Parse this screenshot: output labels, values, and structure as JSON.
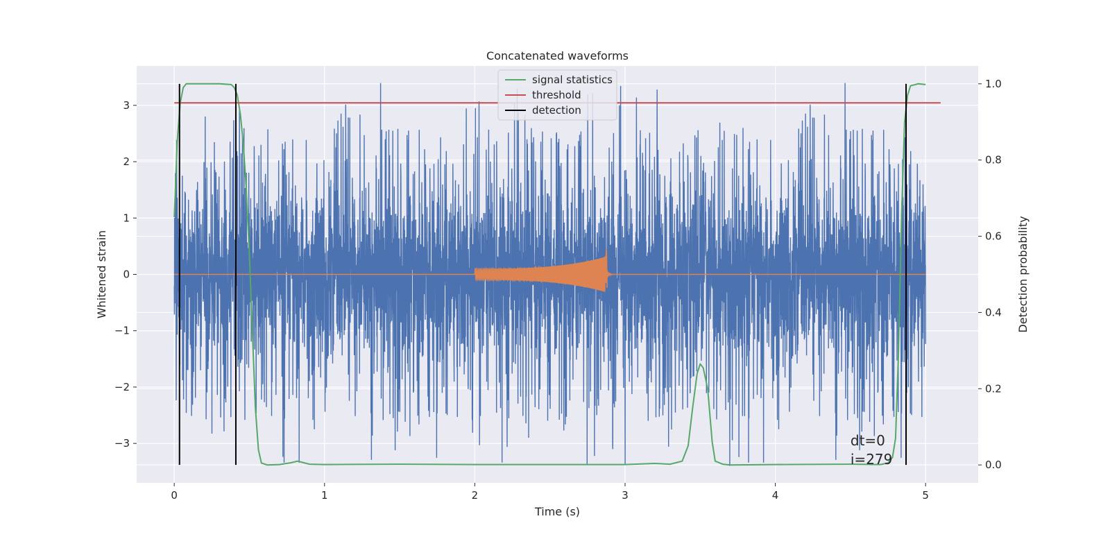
{
  "chart_data": {
    "type": "line",
    "title": "Concatenated waveforms",
    "xlabel": "Time (s)",
    "ylabel": "Whitened strain",
    "y2label": "Detection probability",
    "xlim": [
      -0.25,
      5.35
    ],
    "ylim": [
      -3.7,
      3.7
    ],
    "y2lim": [
      -0.047,
      1.047
    ],
    "xticks": [
      0,
      1,
      2,
      3,
      4,
      5
    ],
    "yticks": [
      3,
      2,
      1,
      0,
      -1,
      -2,
      -3
    ],
    "yticks_text": [
      "3",
      "2",
      "1",
      "0",
      "−1",
      "−2",
      "−3"
    ],
    "y2ticks": [
      1.0,
      0.8,
      0.6,
      0.4,
      0.2,
      0.0
    ],
    "y2ticks_text": [
      "1.0",
      "0.8",
      "0.6",
      "0.4",
      "0.2",
      "0.0"
    ],
    "grid": true,
    "legend_placement": "upper-center",
    "noise": {
      "color": "#4c72b0",
      "x_range": [
        0,
        5
      ],
      "core_amplitude": 1.0,
      "peak_range": [
        -3.4,
        3.4
      ],
      "samples": 5000
    },
    "injected_signal": {
      "color": "#dd8452",
      "start": 2.0,
      "merger": 2.88,
      "end": 5.0,
      "amplitude_start": 0.1,
      "amplitude_peak": 0.32,
      "amplitude_min_dip": -0.45
    },
    "series": [
      {
        "name": "signal statistics",
        "axis": "y2",
        "color": "#55a868",
        "x": [
          0.0,
          0.02,
          0.04,
          0.06,
          0.08,
          0.1,
          0.15,
          0.2,
          0.3,
          0.38,
          0.4,
          0.42,
          0.44,
          0.46,
          0.48,
          0.5,
          0.52,
          0.54,
          0.56,
          0.58,
          0.62,
          0.7,
          0.78,
          0.82,
          0.86,
          0.9,
          1.0,
          1.5,
          2.0,
          2.5,
          3.0,
          3.2,
          3.3,
          3.38,
          3.42,
          3.45,
          3.48,
          3.5,
          3.52,
          3.55,
          3.58,
          3.6,
          3.65,
          3.7,
          4.0,
          4.5,
          4.7,
          4.75,
          4.78,
          4.8,
          4.82,
          4.84,
          4.86,
          4.88,
          4.9,
          4.95,
          5.0
        ],
        "y": [
          0.65,
          0.85,
          0.95,
          0.99,
          1.0,
          1.0,
          1.0,
          1.0,
          1.0,
          0.998,
          0.99,
          0.97,
          0.92,
          0.84,
          0.72,
          0.55,
          0.35,
          0.15,
          0.04,
          0.005,
          0.0,
          0.001,
          0.006,
          0.01,
          0.006,
          0.002,
          0.001,
          0.002,
          0.001,
          0.001,
          0.001,
          0.004,
          0.002,
          0.01,
          0.05,
          0.15,
          0.24,
          0.265,
          0.255,
          0.2,
          0.06,
          0.01,
          0.002,
          0.0,
          0.001,
          0.002,
          0.001,
          0.005,
          0.02,
          0.07,
          0.3,
          0.65,
          0.9,
          0.97,
          0.995,
          1.0,
          0.998
        ]
      },
      {
        "name": "threshold",
        "axis": "y2",
        "color": "#c44e52",
        "x": [
          0.0,
          5.1
        ],
        "y": [
          0.95,
          0.95
        ]
      },
      {
        "name": "detection",
        "axis": "y2",
        "color": "#000000",
        "type": "vlines",
        "x": [
          0.035,
          0.41,
          4.87
        ],
        "y_range": [
          0.0,
          1.0
        ]
      }
    ],
    "annotation": {
      "line1": "dt=0",
      "line2": "i=279",
      "x": 4.5,
      "y": -2.95
    }
  }
}
